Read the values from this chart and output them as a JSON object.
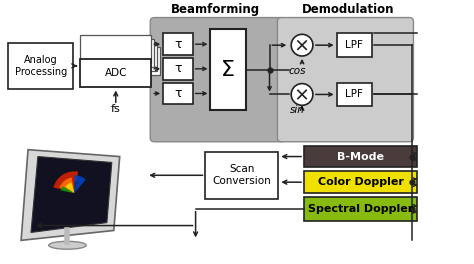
{
  "bg_color": "#ffffff",
  "beamforming_bg": "#b0b0b0",
  "demodulation_bg": "#d0d0d0",
  "bmode_color": "#4a3c3c",
  "color_doppler_color": "#f0e000",
  "spectral_doppler_color": "#88bb10",
  "ec": "#222222",
  "beamforming_title": "Beamforming",
  "demodulation_title": "Demodulation",
  "analog_label": "Analog\nProcessing",
  "adc_label": "ADC",
  "fs_label": "fs",
  "tau_label": "τ",
  "sigma_label": "Σ",
  "cos_label": "cos",
  "sin_label": "sin",
  "lpf_label": "LPF",
  "bmode_label": "B-Mode",
  "color_label": "Color Doppler",
  "spectral_label": "Spectral Doppler",
  "scan_label": "Scan\nConversion"
}
